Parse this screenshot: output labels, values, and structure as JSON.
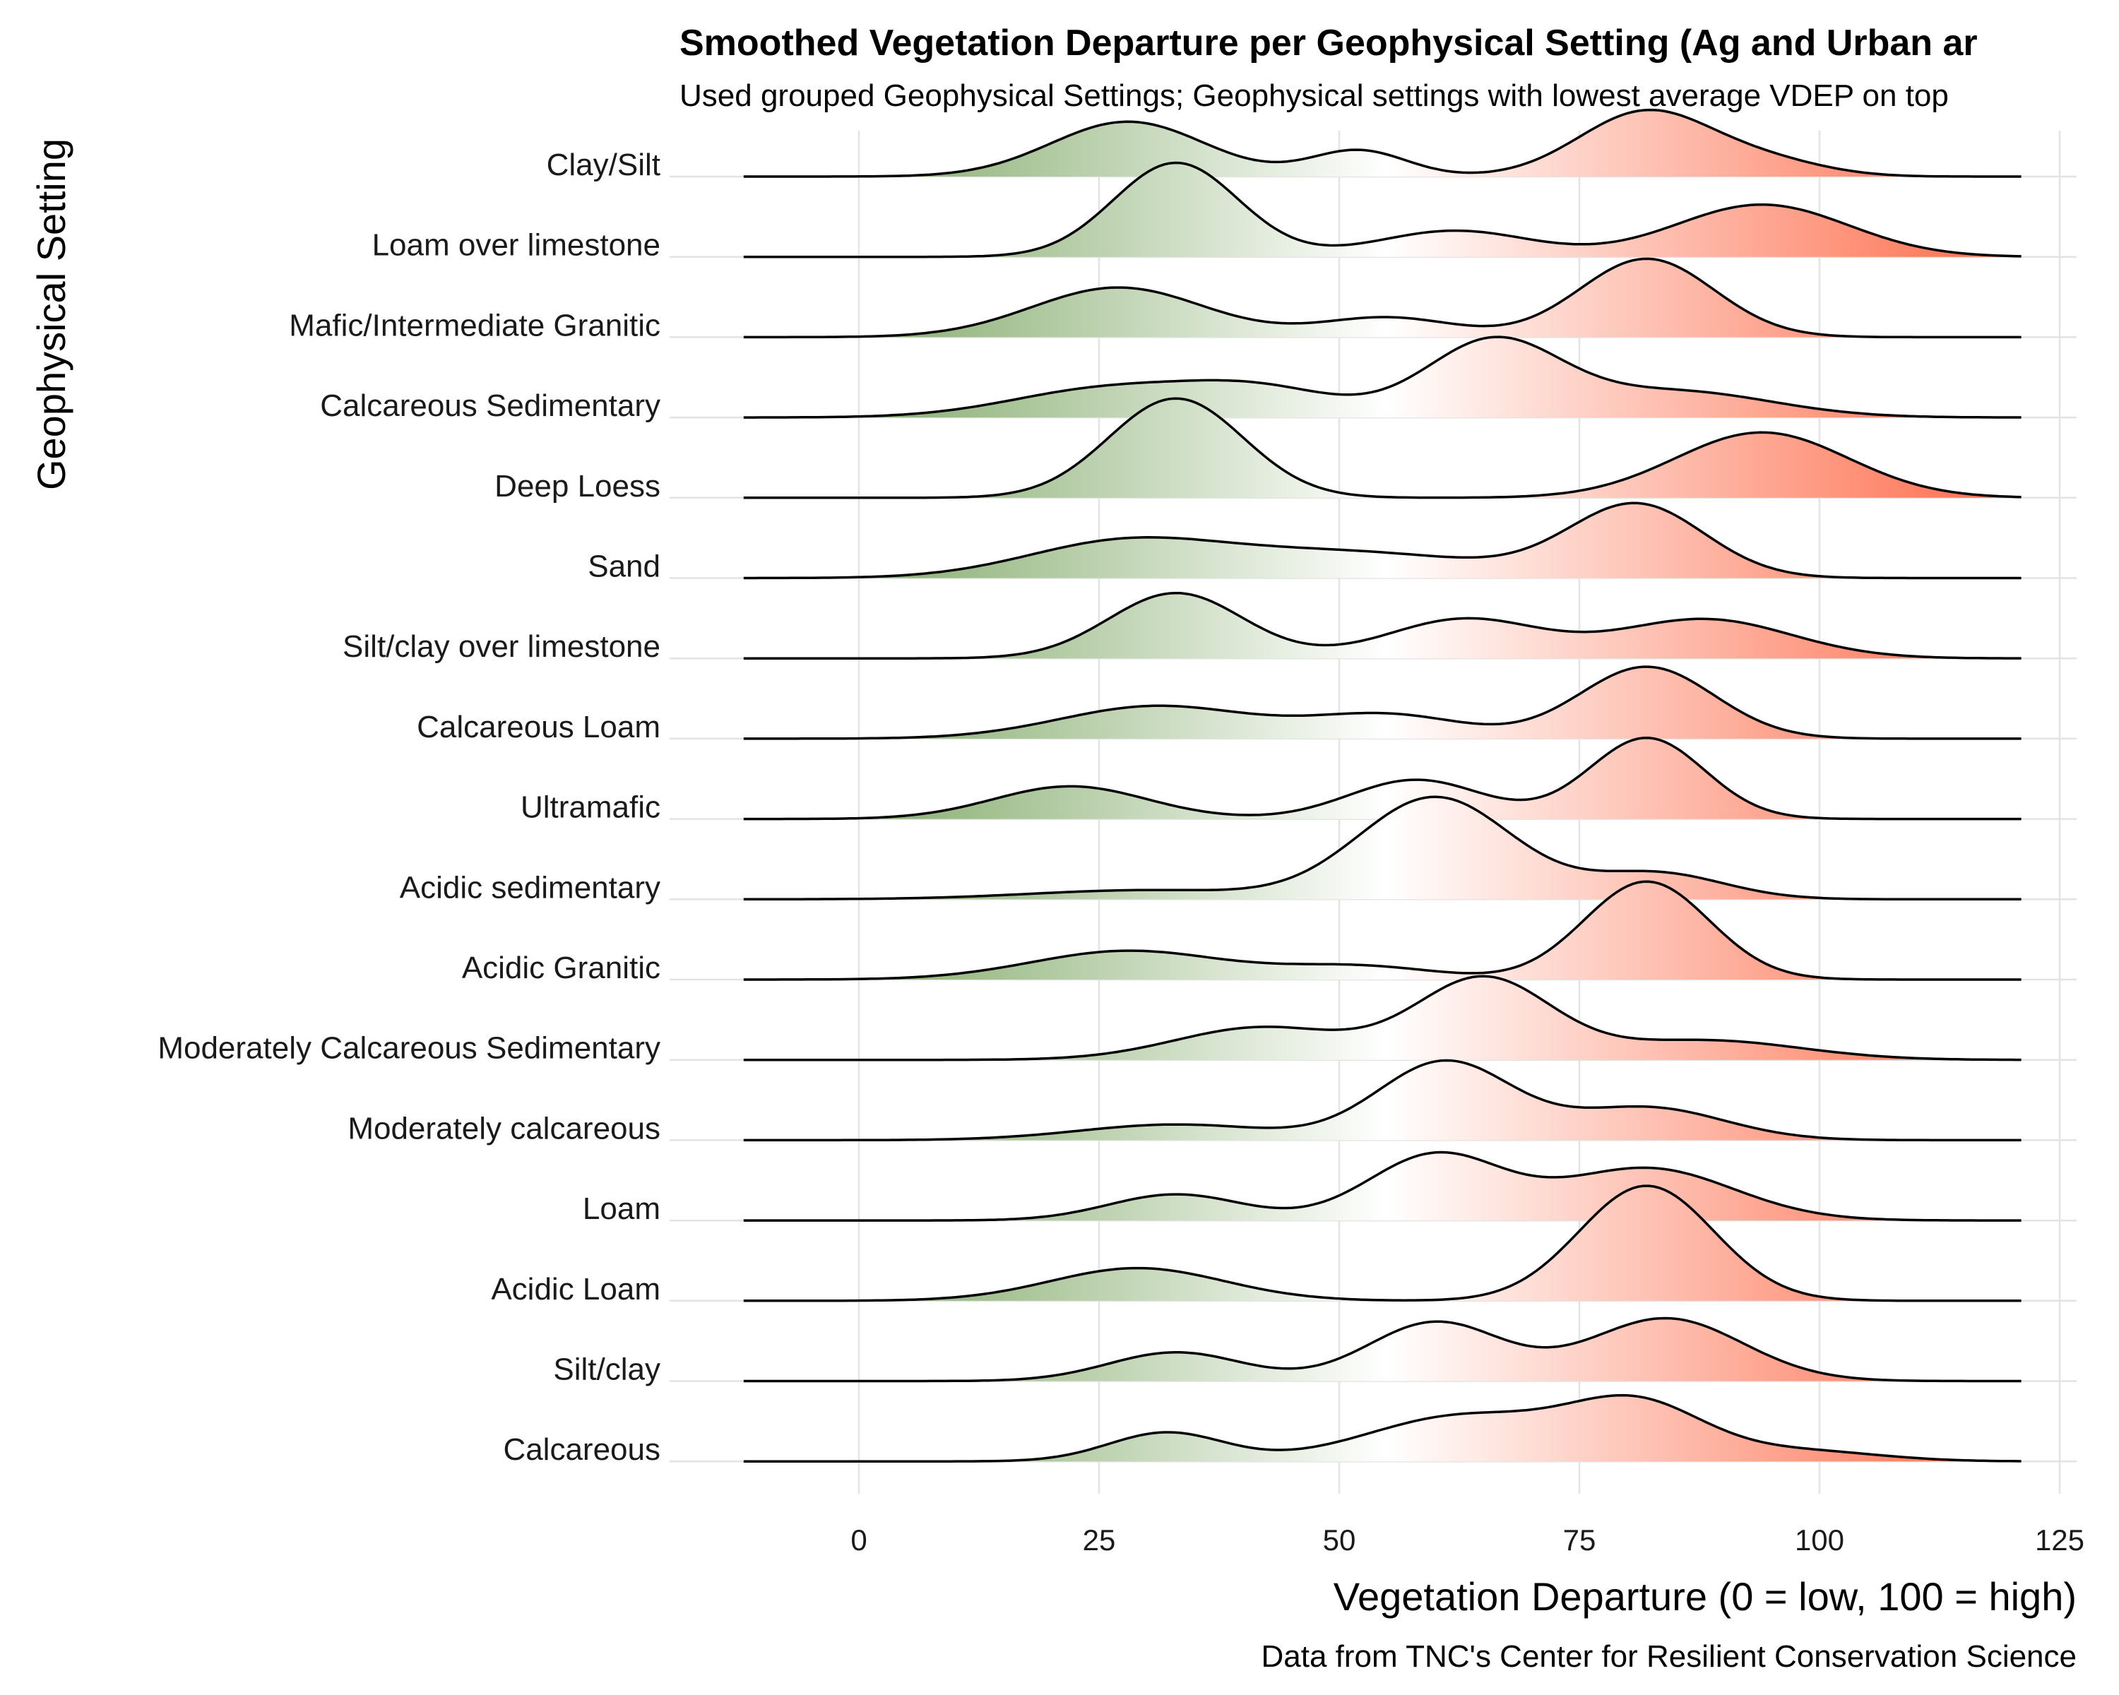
{
  "chart_data": {
    "type": "ridgeline",
    "title": "Smoothed Vegetation Departure per Geophysical Setting (Ag and Urban ar",
    "subtitle": "Used grouped Geophysical Settings; Geophysical settings with lowest average VDEP on top",
    "xlabel": "Vegetation Departure (0 = low, 100 = high)",
    "ylabel": "Geophysical Setting",
    "caption": "Data from TNC's Center for Resilient Conservation Science",
    "xlim": [
      -12,
      121
    ],
    "xticks": [
      0,
      25,
      50,
      75,
      100,
      125
    ],
    "grid": true,
    "fill_gradient": {
      "low": "#6b9a4e",
      "mid": "#ffffff",
      "high": "#fd6a48",
      "mid_value": 55
    },
    "series": [
      {
        "name": "Clay/Silt",
        "peaks": [
          [
            28,
            8,
            0.42
          ],
          [
            52,
            5,
            0.2
          ],
          [
            82,
            7,
            0.5
          ],
          [
            95,
            6,
            0.1
          ]
        ]
      },
      {
        "name": "Loam over limestone",
        "peaks": [
          [
            33,
            6.5,
            0.72
          ],
          [
            62,
            8,
            0.2
          ],
          [
            94,
            9,
            0.4
          ]
        ]
      },
      {
        "name": "Mafic/Intermediate Granitic",
        "peaks": [
          [
            27,
            9,
            0.38
          ],
          [
            55,
            7,
            0.15
          ],
          [
            82,
            7,
            0.6
          ]
        ]
      },
      {
        "name": "Calcareous Sedimentary",
        "peaks": [
          [
            26,
            10,
            0.22
          ],
          [
            42,
            8,
            0.2
          ],
          [
            66,
            7,
            0.58
          ],
          [
            85,
            10,
            0.2
          ]
        ]
      },
      {
        "name": "Deep Loess",
        "peaks": [
          [
            33,
            7,
            0.76
          ],
          [
            94,
            9,
            0.5
          ]
        ]
      },
      {
        "name": "Sand",
        "peaks": [
          [
            27,
            10,
            0.24
          ],
          [
            50,
            15,
            0.2
          ],
          [
            81,
            7,
            0.55
          ]
        ]
      },
      {
        "name": "Silt/clay over limestone",
        "peaks": [
          [
            33,
            7,
            0.5
          ],
          [
            63,
            8,
            0.3
          ],
          [
            88,
            9,
            0.3
          ]
        ]
      },
      {
        "name": "Calcareous Loam",
        "peaks": [
          [
            31,
            10,
            0.25
          ],
          [
            55,
            8,
            0.18
          ],
          [
            82,
            7,
            0.55
          ]
        ]
      },
      {
        "name": "Ultramafic",
        "peaks": [
          [
            22,
            8,
            0.25
          ],
          [
            58,
            7,
            0.3
          ],
          [
            82,
            6,
            0.62
          ]
        ]
      },
      {
        "name": "Acidic sedimentary",
        "peaks": [
          [
            30,
            12,
            0.07
          ],
          [
            60,
            8,
            0.78
          ],
          [
            83,
            7,
            0.2
          ]
        ]
      },
      {
        "name": "Acidic Granitic",
        "peaks": [
          [
            28,
            10,
            0.22
          ],
          [
            52,
            8,
            0.1
          ],
          [
            82,
            6.5,
            0.75
          ]
        ]
      },
      {
        "name": "Moderately Calcareous Sedimentary",
        "peaks": [
          [
            42,
            9,
            0.25
          ],
          [
            65,
            7,
            0.62
          ],
          [
            88,
            10,
            0.15
          ]
        ]
      },
      {
        "name": "Moderately calcareous",
        "peaks": [
          [
            33,
            10,
            0.12
          ],
          [
            61,
            7,
            0.6
          ],
          [
            82,
            8,
            0.25
          ]
        ]
      },
      {
        "name": "Loam",
        "peaks": [
          [
            33,
            7,
            0.2
          ],
          [
            60,
            7,
            0.5
          ],
          [
            82,
            9,
            0.4
          ]
        ]
      },
      {
        "name": "Acidic Loam",
        "peaks": [
          [
            29,
            9,
            0.25
          ],
          [
            82,
            7,
            0.88
          ]
        ]
      },
      {
        "name": "Silt/clay",
        "peaks": [
          [
            33,
            7,
            0.22
          ],
          [
            60,
            7,
            0.45
          ],
          [
            84,
            8,
            0.48
          ]
        ]
      },
      {
        "name": "Calcareous",
        "peaks": [
          [
            32,
            6,
            0.22
          ],
          [
            63,
            10,
            0.35
          ],
          [
            81,
            7,
            0.42
          ],
          [
            98,
            8,
            0.08
          ]
        ]
      }
    ]
  }
}
